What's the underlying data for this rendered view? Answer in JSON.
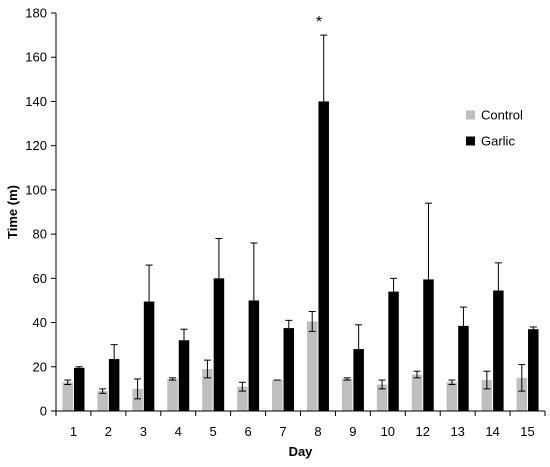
{
  "chart_data": {
    "type": "bar",
    "title": "",
    "xlabel": "Day",
    "ylabel": "Time (m)",
    "ylim": [
      0,
      180
    ],
    "yticks": [
      0,
      20,
      40,
      60,
      80,
      100,
      120,
      140,
      160,
      180
    ],
    "categories": [
      "1",
      "2",
      "3",
      "4",
      "5",
      "6",
      "7",
      "8",
      "9",
      "10",
      "12",
      "13",
      "14",
      "15"
    ],
    "series": [
      {
        "name": "Control",
        "color": "#bfbfbf",
        "values": [
          13,
          9,
          10,
          14.5,
          19,
          11,
          14,
          40.5,
          14.5,
          12,
          16.5,
          13,
          14,
          15
        ],
        "errors": [
          1,
          1,
          4.5,
          0.5,
          4,
          2,
          0,
          4.5,
          0.5,
          2,
          1.5,
          1,
          4,
          6
        ]
      },
      {
        "name": "Garlic",
        "color": "#000000",
        "values": [
          19.5,
          23.5,
          49.5,
          32,
          60,
          50,
          37.5,
          140,
          28,
          54,
          59.5,
          38.5,
          54.5,
          37
        ],
        "errors": [
          0.5,
          6.5,
          16.5,
          5,
          18,
          26,
          3.5,
          30,
          11,
          6,
          34.5,
          8.5,
          12.5,
          1
        ]
      }
    ],
    "annotations": [
      {
        "text": "*",
        "category": "8"
      }
    ],
    "legend": "right",
    "grid": false
  }
}
